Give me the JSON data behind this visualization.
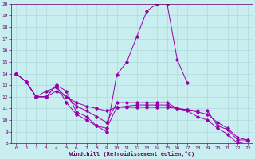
{
  "xlabel": "Windchill (Refroidissement éolien,°C)",
  "bg_color": "#c8eef0",
  "grid_color": "#b0d8dc",
  "line_color": "#9900aa",
  "xlim": [
    -0.5,
    23.5
  ],
  "ylim": [
    8,
    20
  ],
  "xticks": [
    0,
    1,
    2,
    3,
    4,
    5,
    6,
    7,
    8,
    9,
    10,
    11,
    12,
    13,
    14,
    15,
    16,
    17,
    18,
    19,
    20,
    21,
    22,
    23
  ],
  "yticks": [
    8,
    9,
    10,
    11,
    12,
    13,
    14,
    15,
    16,
    17,
    18,
    19,
    20
  ],
  "series": [
    [
      14,
      13.3,
      12,
      12,
      13,
      12.5,
      10.7,
      10.3,
      9.5,
      9.3,
      11.1,
      11.1,
      11.1,
      11.1,
      11.1,
      11.1,
      11.0,
      10.9,
      10.8,
      10.8,
      9.5,
      9.2,
      8.3,
      8.3
    ],
    [
      14,
      13.3,
      12,
      12,
      13,
      11.5,
      10.5,
      10.0,
      9.5,
      9.0,
      13.9,
      15.0,
      17.2,
      19.4,
      20.0,
      20.0,
      15.2,
      13.2,
      null,
      null,
      null,
      null,
      null,
      null
    ],
    [
      14,
      13.3,
      12,
      12,
      12.5,
      12.0,
      11.5,
      11.2,
      11.0,
      10.8,
      11.1,
      11.2,
      11.3,
      11.3,
      11.3,
      11.3,
      11.0,
      10.9,
      10.7,
      10.5,
      9.8,
      9.3,
      8.5,
      8.3
    ],
    [
      14,
      13.3,
      12,
      12.5,
      12.8,
      12.0,
      11.2,
      10.8,
      10.3,
      9.8,
      11.5,
      11.5,
      11.5,
      11.5,
      11.5,
      11.5,
      11.0,
      10.8,
      10.3,
      10.0,
      9.3,
      8.8,
      8.0,
      8.2
    ]
  ]
}
